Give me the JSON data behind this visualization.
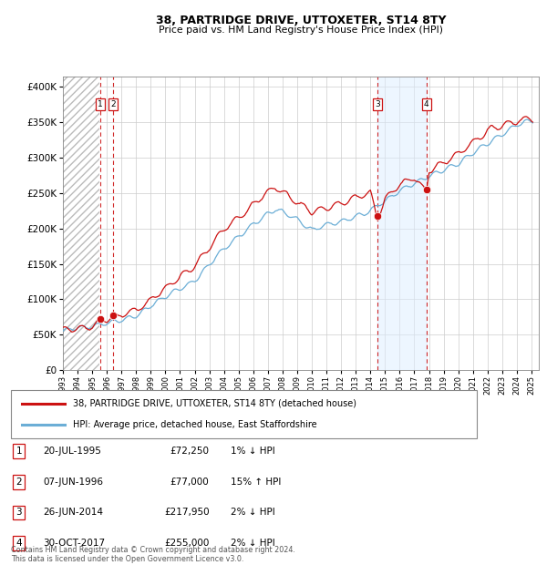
{
  "title": "38, PARTRIDGE DRIVE, UTTOXETER, ST14 8TY",
  "subtitle": "Price paid vs. HM Land Registry's House Price Index (HPI)",
  "ylabel_values": [
    0,
    50000,
    100000,
    150000,
    200000,
    250000,
    300000,
    350000,
    400000
  ],
  "ylim": [
    0,
    415000
  ],
  "xlim_start": 1993.0,
  "xlim_end": 2025.5,
  "xtick_years": [
    1993,
    1994,
    1995,
    1996,
    1997,
    1998,
    1999,
    2000,
    2001,
    2002,
    2003,
    2004,
    2005,
    2006,
    2007,
    2008,
    2009,
    2010,
    2011,
    2012,
    2013,
    2014,
    2015,
    2016,
    2017,
    2018,
    2019,
    2020,
    2021,
    2022,
    2023,
    2024,
    2025
  ],
  "sale_dates": [
    1995.55,
    1996.44,
    2014.49,
    2017.83
  ],
  "sale_prices": [
    72250,
    77000,
    217950,
    255000
  ],
  "sale_labels": [
    "1",
    "2",
    "3",
    "4"
  ],
  "hpi_line_color": "#6baed6",
  "price_line_color": "#cc1111",
  "sale_marker_color": "#cc1111",
  "vline_color": "#cc1111",
  "shade_color": "#ddeeff",
  "hatch_color": "#cccccc",
  "grid_color": "#cccccc",
  "legend_line1": "38, PARTRIDGE DRIVE, UTTOXETER, ST14 8TY (detached house)",
  "legend_line2": "HPI: Average price, detached house, East Staffordshire",
  "table_rows": [
    [
      "1",
      "20-JUL-1995",
      "£72,250",
      "1% ↓ HPI"
    ],
    [
      "2",
      "07-JUN-1996",
      "£77,000",
      "15% ↑ HPI"
    ],
    [
      "3",
      "26-JUN-2014",
      "£217,950",
      "2% ↓ HPI"
    ],
    [
      "4",
      "30-OCT-2017",
      "£255,000",
      "2% ↓ HPI"
    ]
  ],
  "footer": "Contains HM Land Registry data © Crown copyright and database right 2024.\nThis data is licensed under the Open Government Licence v3.0.",
  "hatch_end": 1995.5
}
